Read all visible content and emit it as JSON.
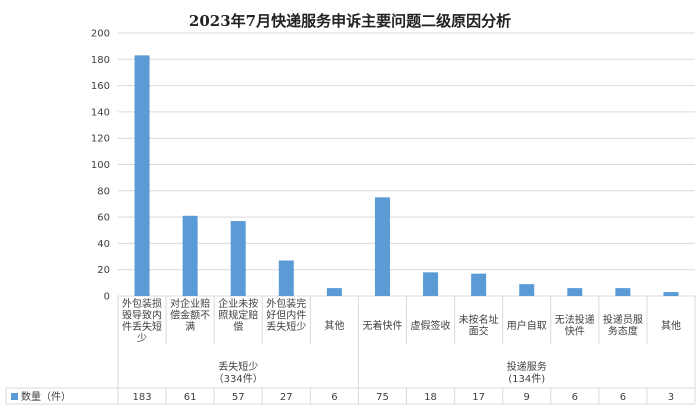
{
  "chart_data": {
    "type": "bar",
    "title": "2023年7月快递服务申诉主要问题二级原因分析",
    "ylim": [
      0,
      200
    ],
    "yticks": [
      0,
      20,
      40,
      60,
      80,
      100,
      120,
      140,
      160,
      180,
      200
    ],
    "grid": true,
    "color": "#5b9bd5",
    "groups": [
      {
        "label": "丢失短少",
        "sublabel": "（334件）",
        "categories": [
          {
            "label_lines": [
              "外包装损",
              "毁导致内",
              "件丢失短",
              "少"
            ],
            "value": 183
          },
          {
            "label_lines": [
              "对企业赔",
              "偿金额不",
              "满"
            ],
            "value": 61
          },
          {
            "label_lines": [
              "企业未按",
              "照规定赔",
              "偿"
            ],
            "value": 57
          },
          {
            "label_lines": [
              "外包装完",
              "好但内件",
              "丢失短少"
            ],
            "value": 27
          },
          {
            "label_lines": [
              "其他"
            ],
            "value": 6
          }
        ]
      },
      {
        "label": "投递服务",
        "sublabel": "(134件)",
        "categories": [
          {
            "label_lines": [
              "无着快件"
            ],
            "value": 75
          },
          {
            "label_lines": [
              "虚假签收"
            ],
            "value": 18
          },
          {
            "label_lines": [
              "未按名址",
              "面交"
            ],
            "value": 17
          },
          {
            "label_lines": [
              "用户自取"
            ],
            "value": 9
          },
          {
            "label_lines": [
              "无法投递",
              "快件"
            ],
            "value": 6
          },
          {
            "label_lines": [
              "投递员服",
              "务态度"
            ],
            "value": 6
          },
          {
            "label_lines": [
              "其他"
            ],
            "value": 3
          }
        ]
      }
    ],
    "series": [
      {
        "name": "数量（件）"
      }
    ]
  }
}
